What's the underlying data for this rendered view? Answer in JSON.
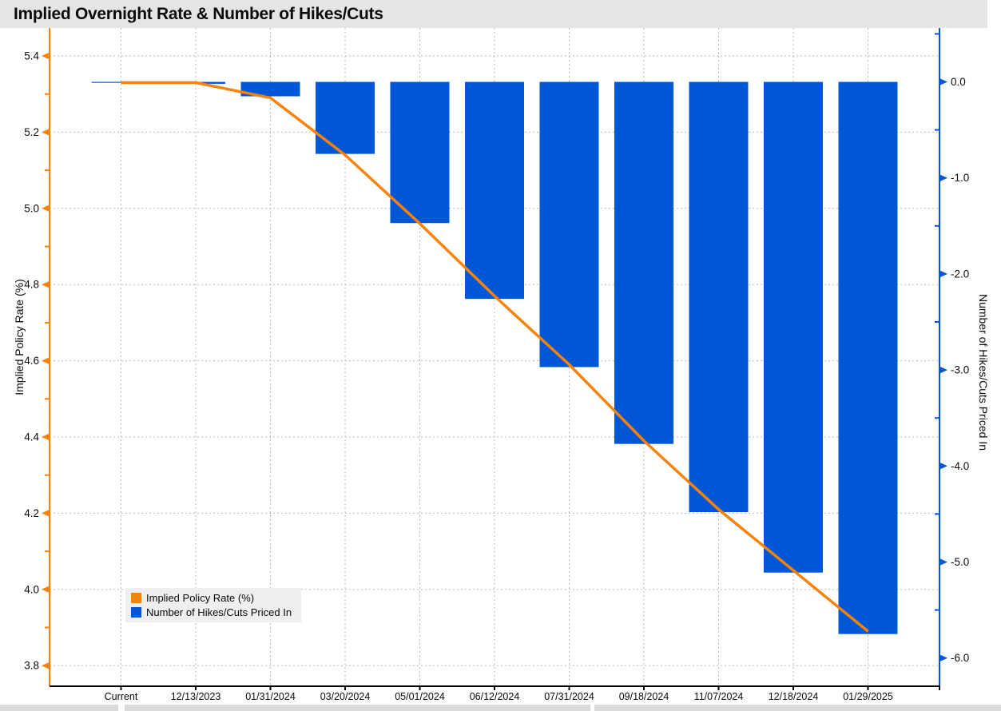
{
  "title": "Implied Overnight Rate & Number of Hikes/Cuts",
  "colors": {
    "line_orange": "#F7820C",
    "bar_blue": "#0057D6",
    "title_bar_bg": "#E5E5E5",
    "legend_bg": "#EFEFEF",
    "grid": "#BBBBBB",
    "axis_black": "#000000",
    "bottom_strip": "#DBDBDB"
  },
  "legend": {
    "position": "bottom-left",
    "items": [
      {
        "label": "Implied Policy Rate (%)",
        "color": "#F7820C"
      },
      {
        "label": "Number of Hikes/Cuts Priced In",
        "color": "#0057D6"
      }
    ]
  },
  "chart_data": {
    "type": "combo",
    "title": "Implied Overnight Rate & Number of Hikes/Cuts",
    "grid": "dashed, both axes",
    "categories": [
      "Current",
      "12/13/2023",
      "01/31/2024",
      "03/20/2024",
      "05/01/2024",
      "06/12/2024",
      "07/31/2024",
      "09/18/2024",
      "11/07/2024",
      "12/18/2024",
      "01/29/2025"
    ],
    "series": [
      {
        "name": "Implied Policy Rate (%)",
        "type": "line",
        "axis": "left",
        "color": "#F7820C",
        "values": [
          5.33,
          5.33,
          5.29,
          5.14,
          4.96,
          4.77,
          4.59,
          4.39,
          4.21,
          4.05,
          3.89
        ]
      },
      {
        "name": "Number of Hikes/Cuts Priced In",
        "type": "bar",
        "axis": "right",
        "color": "#0057D6",
        "values": [
          -0.01,
          -0.02,
          -0.15,
          -0.75,
          -1.47,
          -2.26,
          -2.97,
          -3.77,
          -4.48,
          -5.11,
          -5.75
        ]
      }
    ],
    "left_axis": {
      "label": "Implied Policy Rate (%)",
      "color": "#F7820C",
      "major_ticks": [
        5.4,
        5.2,
        5.0,
        4.8,
        4.6,
        4.4,
        4.2,
        4.0,
        3.8
      ],
      "minor_ticks": [
        5.3,
        5.1,
        4.9,
        4.7,
        4.5,
        4.3,
        4.1,
        3.9
      ],
      "range": [
        3.75,
        5.47
      ]
    },
    "right_axis": {
      "label": "Number of Hikes/Cuts Priced In",
      "color": "#0057D6",
      "major_ticks": [
        0.0,
        -1.0,
        -2.0,
        -3.0,
        -4.0,
        -5.0,
        -6.0
      ],
      "minor_ticks": [
        0.5,
        -0.5,
        -1.5,
        -2.5,
        -3.5,
        -4.5,
        -5.5
      ],
      "range": [
        -6.29,
        0.55
      ]
    }
  }
}
